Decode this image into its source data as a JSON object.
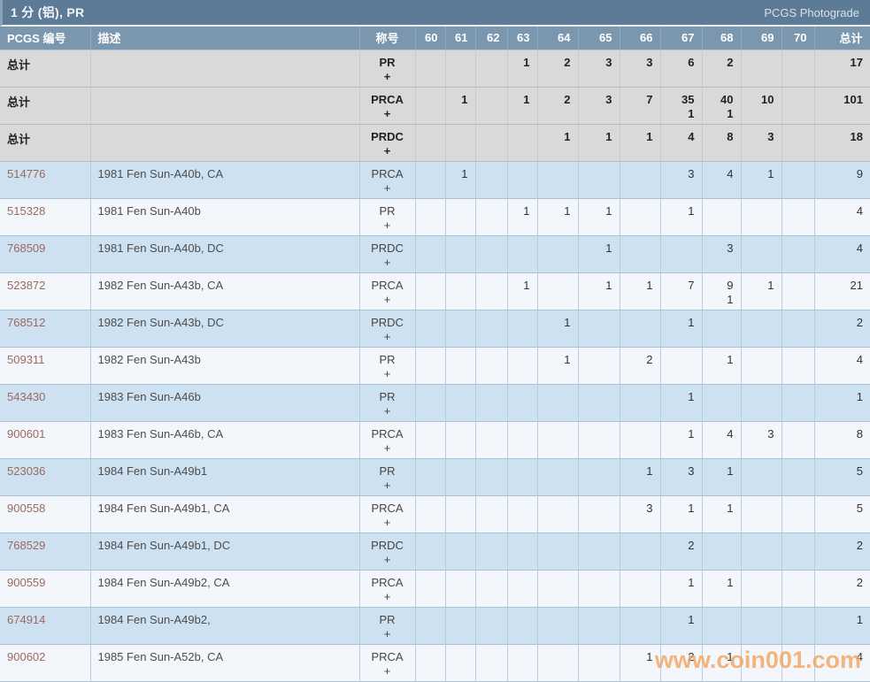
{
  "header": {
    "title": "1 分 (铝), PR",
    "right_link": "PCGS Photograde"
  },
  "table": {
    "columns": [
      {
        "key": "id",
        "label": "PCGS 编号",
        "align": "left"
      },
      {
        "key": "desc",
        "label": "描述",
        "align": "left"
      },
      {
        "key": "designation",
        "label": "称号",
        "align": "center"
      },
      {
        "key": "60",
        "label": "60",
        "align": "right"
      },
      {
        "key": "61",
        "label": "61",
        "align": "right"
      },
      {
        "key": "62",
        "label": "62",
        "align": "right"
      },
      {
        "key": "63",
        "label": "63",
        "align": "right"
      },
      {
        "key": "64",
        "label": "64",
        "align": "right"
      },
      {
        "key": "65",
        "label": "65",
        "align": "right"
      },
      {
        "key": "66",
        "label": "66",
        "align": "right"
      },
      {
        "key": "67",
        "label": "67",
        "align": "right"
      },
      {
        "key": "68",
        "label": "68",
        "align": "right"
      },
      {
        "key": "69",
        "label": "69",
        "align": "right"
      },
      {
        "key": "70",
        "label": "70",
        "align": "right"
      },
      {
        "key": "total",
        "label": "总计",
        "align": "right"
      }
    ],
    "total_row_label": "总计",
    "plus_label": "+",
    "rows": [
      {
        "id": "总计",
        "is_total": true,
        "desc": "",
        "designation": "PR",
        "grades": [
          "",
          "",
          "",
          "1",
          "2",
          "3",
          "3",
          "6",
          "2",
          "",
          ""
        ],
        "grades_plus": [
          "",
          "",
          "",
          "",
          "",
          "",
          "",
          "",
          "",
          "",
          ""
        ],
        "total": "17",
        "total_plus": ""
      },
      {
        "id": "总计",
        "is_total": true,
        "desc": "",
        "designation": "PRCA",
        "grades": [
          "",
          "1",
          "",
          "1",
          "2",
          "3",
          "7",
          "35",
          "40",
          "10",
          ""
        ],
        "grades_plus": [
          "",
          "",
          "",
          "",
          "",
          "",
          "",
          "1",
          "1",
          "",
          ""
        ],
        "total": "101",
        "total_plus": ""
      },
      {
        "id": "总计",
        "is_total": true,
        "desc": "",
        "designation": "PRDC",
        "grades": [
          "",
          "",
          "",
          "",
          "1",
          "1",
          "1",
          "4",
          "8",
          "3",
          ""
        ],
        "grades_plus": [
          "",
          "",
          "",
          "",
          "",
          "",
          "",
          "",
          "",
          "",
          ""
        ],
        "total": "18",
        "total_plus": ""
      },
      {
        "id": "514776",
        "is_total": false,
        "desc": "1981 Fen Sun-A40b, CA",
        "designation": "PRCA",
        "grades": [
          "",
          "1",
          "",
          "",
          "",
          "",
          "",
          "3",
          "4",
          "1",
          ""
        ],
        "grades_plus": [
          "",
          "",
          "",
          "",
          "",
          "",
          "",
          "",
          "",
          "",
          ""
        ],
        "total": "9",
        "total_plus": ""
      },
      {
        "id": "515328",
        "is_total": false,
        "desc": "1981 Fen Sun-A40b",
        "designation": "PR",
        "grades": [
          "",
          "",
          "",
          "1",
          "1",
          "1",
          "",
          "1",
          "",
          "",
          ""
        ],
        "grades_plus": [
          "",
          "",
          "",
          "",
          "",
          "",
          "",
          "",
          "",
          "",
          ""
        ],
        "total": "4",
        "total_plus": ""
      },
      {
        "id": "768509",
        "is_total": false,
        "desc": "1981 Fen Sun-A40b, DC",
        "designation": "PRDC",
        "grades": [
          "",
          "",
          "",
          "",
          "",
          "1",
          "",
          "",
          "3",
          "",
          ""
        ],
        "grades_plus": [
          "",
          "",
          "",
          "",
          "",
          "",
          "",
          "",
          "",
          "",
          ""
        ],
        "total": "4",
        "total_plus": ""
      },
      {
        "id": "523872",
        "is_total": false,
        "desc": "1982 Fen Sun-A43b, CA",
        "designation": "PRCA",
        "grades": [
          "",
          "",
          "",
          "1",
          "",
          "1",
          "1",
          "7",
          "9",
          "1",
          ""
        ],
        "grades_plus": [
          "",
          "",
          "",
          "",
          "",
          "",
          "",
          "",
          "1",
          "",
          ""
        ],
        "total": "21",
        "total_plus": ""
      },
      {
        "id": "768512",
        "is_total": false,
        "desc": "1982 Fen Sun-A43b, DC",
        "designation": "PRDC",
        "grades": [
          "",
          "",
          "",
          "",
          "1",
          "",
          "",
          "1",
          "",
          "",
          ""
        ],
        "grades_plus": [
          "",
          "",
          "",
          "",
          "",
          "",
          "",
          "",
          "",
          "",
          ""
        ],
        "total": "2",
        "total_plus": ""
      },
      {
        "id": "509311",
        "is_total": false,
        "desc": "1982 Fen Sun-A43b",
        "designation": "PR",
        "grades": [
          "",
          "",
          "",
          "",
          "1",
          "",
          "2",
          "",
          "1",
          "",
          ""
        ],
        "grades_plus": [
          "",
          "",
          "",
          "",
          "",
          "",
          "",
          "",
          "",
          "",
          ""
        ],
        "total": "4",
        "total_plus": ""
      },
      {
        "id": "543430",
        "is_total": false,
        "desc": "1983 Fen Sun-A46b",
        "designation": "PR",
        "grades": [
          "",
          "",
          "",
          "",
          "",
          "",
          "",
          "1",
          "",
          "",
          ""
        ],
        "grades_plus": [
          "",
          "",
          "",
          "",
          "",
          "",
          "",
          "",
          "",
          "",
          ""
        ],
        "total": "1",
        "total_plus": ""
      },
      {
        "id": "900601",
        "is_total": false,
        "desc": "1983 Fen Sun-A46b, CA",
        "designation": "PRCA",
        "grades": [
          "",
          "",
          "",
          "",
          "",
          "",
          "",
          "1",
          "4",
          "3",
          ""
        ],
        "grades_plus": [
          "",
          "",
          "",
          "",
          "",
          "",
          "",
          "",
          "",
          "",
          ""
        ],
        "total": "8",
        "total_plus": ""
      },
      {
        "id": "523036",
        "is_total": false,
        "desc": "1984 Fen Sun-A49b1",
        "designation": "PR",
        "grades": [
          "",
          "",
          "",
          "",
          "",
          "",
          "1",
          "3",
          "1",
          "",
          ""
        ],
        "grades_plus": [
          "",
          "",
          "",
          "",
          "",
          "",
          "",
          "",
          "",
          "",
          ""
        ],
        "total": "5",
        "total_plus": ""
      },
      {
        "id": "900558",
        "is_total": false,
        "desc": "1984 Fen Sun-A49b1, CA",
        "designation": "PRCA",
        "grades": [
          "",
          "",
          "",
          "",
          "",
          "",
          "3",
          "1",
          "1",
          "",
          ""
        ],
        "grades_plus": [
          "",
          "",
          "",
          "",
          "",
          "",
          "",
          "",
          "",
          "",
          ""
        ],
        "total": "5",
        "total_plus": ""
      },
      {
        "id": "768529",
        "is_total": false,
        "desc": "1984 Fen Sun-A49b1, DC",
        "designation": "PRDC",
        "grades": [
          "",
          "",
          "",
          "",
          "",
          "",
          "",
          "2",
          "",
          "",
          ""
        ],
        "grades_plus": [
          "",
          "",
          "",
          "",
          "",
          "",
          "",
          "",
          "",
          "",
          ""
        ],
        "total": "2",
        "total_plus": ""
      },
      {
        "id": "900559",
        "is_total": false,
        "desc": "1984 Fen Sun-A49b2, CA",
        "designation": "PRCA",
        "grades": [
          "",
          "",
          "",
          "",
          "",
          "",
          "",
          "1",
          "1",
          "",
          ""
        ],
        "grades_plus": [
          "",
          "",
          "",
          "",
          "",
          "",
          "",
          "",
          "",
          "",
          ""
        ],
        "total": "2",
        "total_plus": ""
      },
      {
        "id": "674914",
        "is_total": false,
        "desc": "1984 Fen Sun-A49b2,",
        "designation": "PR",
        "grades": [
          "",
          "",
          "",
          "",
          "",
          "",
          "",
          "1",
          "",
          "",
          ""
        ],
        "grades_plus": [
          "",
          "",
          "",
          "",
          "",
          "",
          "",
          "",
          "",
          "",
          ""
        ],
        "total": "1",
        "total_plus": ""
      },
      {
        "id": "900602",
        "is_total": false,
        "desc": "1985 Fen Sun-A52b, CA",
        "designation": "PRCA",
        "grades": [
          "",
          "",
          "",
          "",
          "",
          "",
          "1",
          "2",
          "1",
          "",
          ""
        ],
        "grades_plus": [
          "",
          "",
          "",
          "",
          "",
          "",
          "",
          "",
          "",
          "",
          ""
        ],
        "total": "4",
        "total_plus": ""
      }
    ]
  },
  "watermark": {
    "text": "www.coin001.com",
    "color": "#f5a55f"
  }
}
